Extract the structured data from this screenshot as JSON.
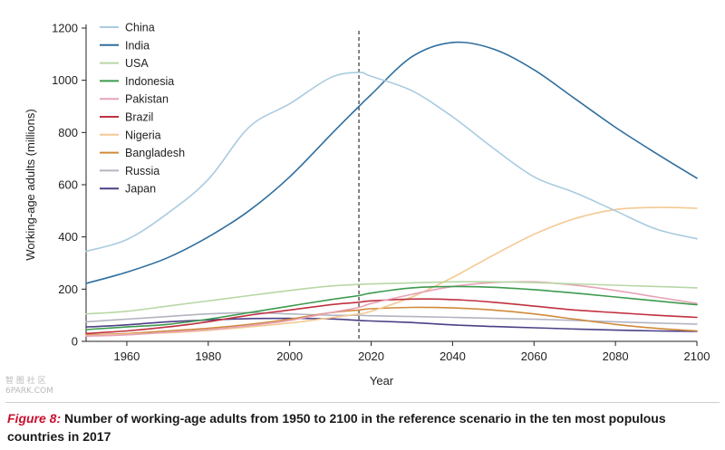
{
  "chart_data": {
    "type": "line",
    "xlabel": "Year",
    "ylabel": "Working-age adults (millions)",
    "xlim": [
      1950,
      2100
    ],
    "ylim": [
      0,
      1200
    ],
    "xticks": [
      1960,
      1980,
      2000,
      2020,
      2040,
      2060,
      2080,
      2100
    ],
    "yticks": [
      0,
      200,
      400,
      600,
      800,
      1000,
      1200
    ],
    "reference_line_x": 2017,
    "legend_position": "top-left",
    "x": [
      1950,
      1960,
      1970,
      1980,
      1990,
      2000,
      2010,
      2017,
      2020,
      2030,
      2040,
      2050,
      2060,
      2070,
      2080,
      2090,
      2100
    ],
    "series": [
      {
        "name": "China",
        "color": "#a9cbe0",
        "values": [
          345,
          390,
          490,
          620,
          820,
          910,
          1010,
          1030,
          1015,
          960,
          860,
          740,
          630,
          570,
          500,
          430,
          393
        ]
      },
      {
        "name": "India",
        "color": "#2f6e9e",
        "values": [
          222,
          265,
          320,
          400,
          500,
          630,
          790,
          900,
          945,
          1090,
          1145,
          1120,
          1040,
          930,
          820,
          720,
          625
        ]
      },
      {
        "name": "USA",
        "color": "#b8d7a6",
        "values": [
          105,
          115,
          135,
          155,
          175,
          195,
          212,
          218,
          220,
          224,
          228,
          228,
          225,
          220,
          215,
          210,
          205
        ]
      },
      {
        "name": "Indonesia",
        "color": "#3e9a4f",
        "values": [
          45,
          55,
          65,
          85,
          110,
          135,
          160,
          175,
          185,
          205,
          210,
          207,
          198,
          185,
          170,
          155,
          140
        ]
      },
      {
        "name": "Pakistan",
        "color": "#e7a3b6",
        "values": [
          20,
          25,
          35,
          45,
          60,
          80,
          110,
          130,
          145,
          180,
          210,
          225,
          228,
          215,
          195,
          170,
          145
        ]
      },
      {
        "name": "Brazil",
        "color": "#c0313f",
        "values": [
          30,
          40,
          55,
          75,
          100,
          120,
          140,
          150,
          155,
          162,
          160,
          150,
          135,
          120,
          110,
          100,
          92
        ]
      },
      {
        "name": "Nigeria",
        "color": "#f4c993",
        "values": [
          22,
          27,
          33,
          42,
          55,
          70,
          90,
          105,
          115,
          170,
          245,
          330,
          410,
          470,
          505,
          513,
          510
        ]
      },
      {
        "name": "Bangladesh",
        "color": "#d08a3c",
        "values": [
          25,
          30,
          40,
          50,
          65,
          85,
          110,
          120,
          125,
          130,
          128,
          120,
          105,
          85,
          65,
          50,
          40
        ]
      },
      {
        "name": "Russia",
        "color": "#b3b3c2",
        "values": [
          75,
          85,
          95,
          105,
          110,
          105,
          100,
          100,
          98,
          95,
          92,
          88,
          85,
          80,
          75,
          70,
          66
        ]
      },
      {
        "name": "Japan",
        "color": "#4d3f86",
        "values": [
          55,
          63,
          75,
          82,
          87,
          88,
          86,
          80,
          78,
          72,
          63,
          57,
          52,
          47,
          43,
          40,
          38
        ]
      }
    ]
  },
  "watermark": {
    "line1": "智 图 社 区",
    "line2": "6PARK.COM"
  },
  "caption": {
    "label": "Figure 8:",
    "text": "Number of working-age adults from 1950 to 2100 in the reference scenario in the ten most populous countries in 2017"
  }
}
